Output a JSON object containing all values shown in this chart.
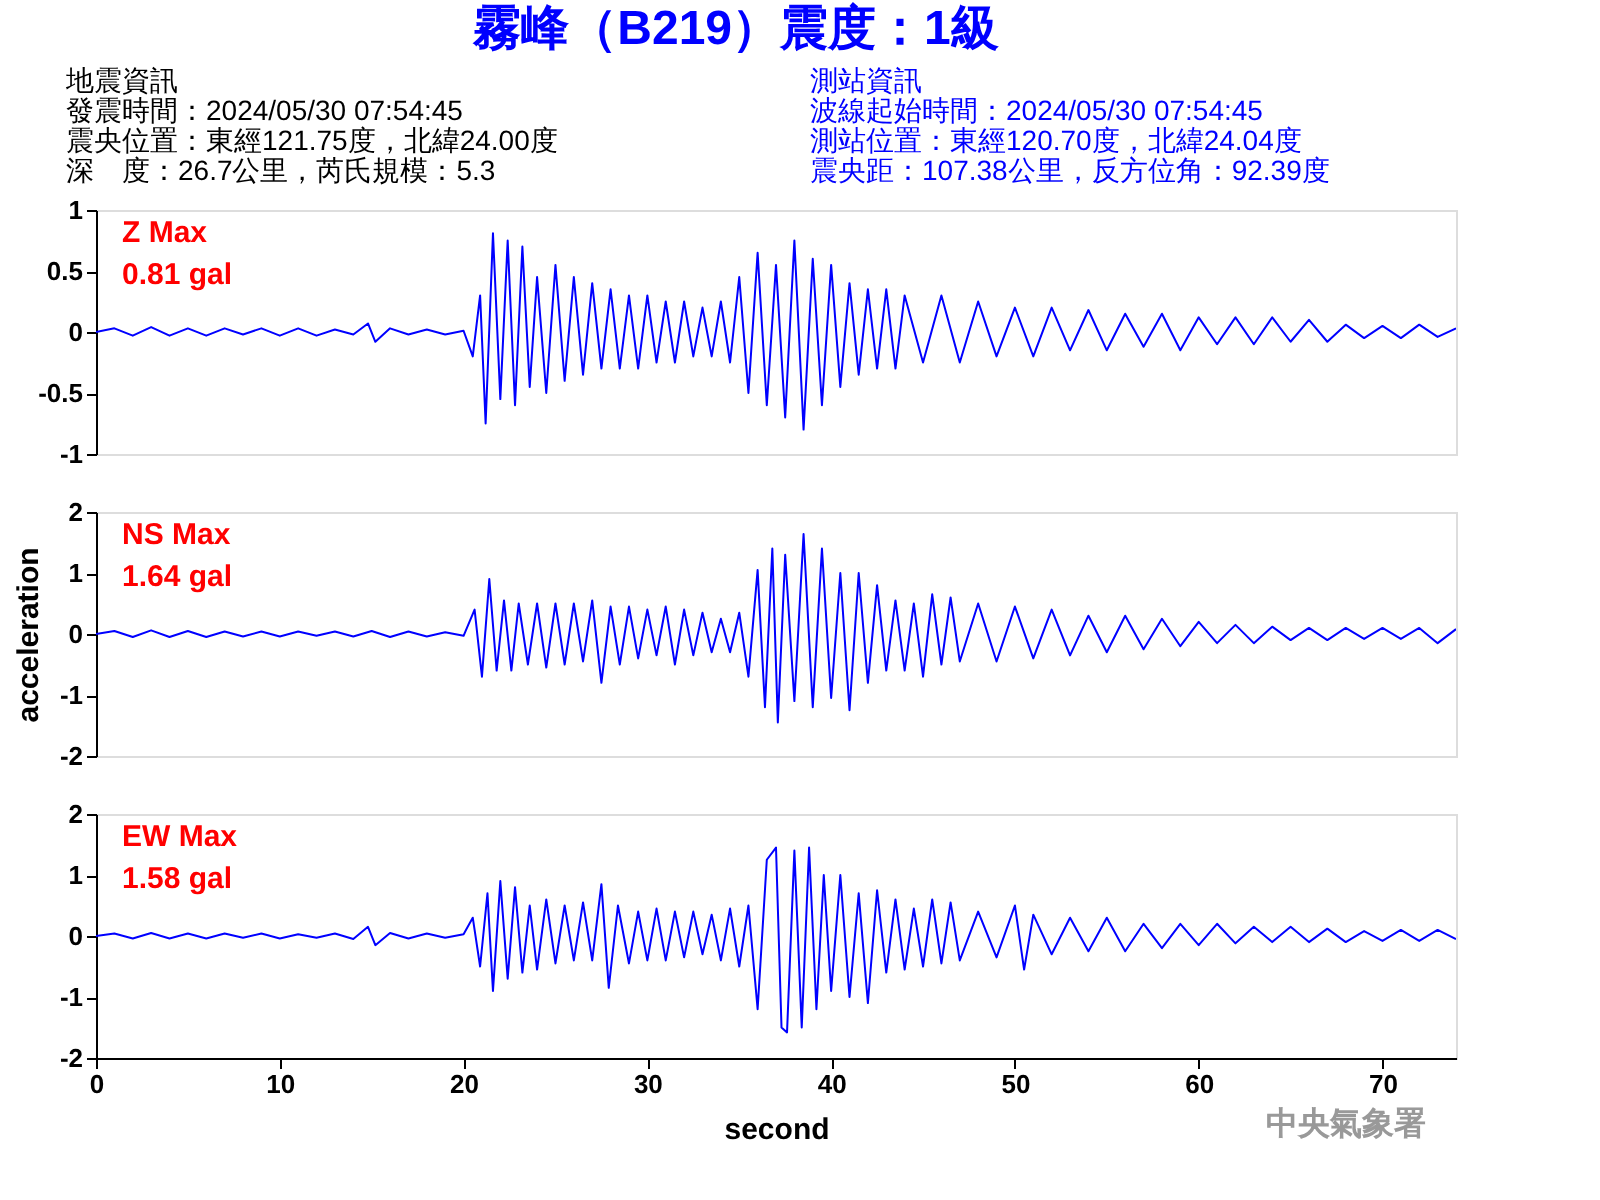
{
  "chart_data": [
    {
      "type": "line",
      "title": "霧峰（B219）震度：1級",
      "annotations": [
        "Z Max",
        "0.81 gal",
        "地震資訊",
        "發震時間：2024/05/30 07:54:45",
        "震央位置：東經121.75度，北緯24.00度",
        "深　度：26.7公里，芮氏規模：5.3",
        "測站資訊",
        "波線起始時間：2024/05/30 07:54:45",
        "測站位置：東經120.70度，北緯24.04度",
        "震央距：107.38公里，反方位角：92.39度"
      ],
      "xlim": [
        0,
        74
      ],
      "ylim": [
        -1,
        1
      ],
      "yticks": [
        -1,
        -0.5,
        0,
        0.5,
        1
      ],
      "tick_labels": "y",
      "series": [
        {
          "color": "#0000ff",
          "x": [
            0,
            1,
            2,
            3,
            4,
            5,
            6,
            7,
            8,
            9,
            10,
            11,
            12,
            13,
            14,
            14.8,
            15.2,
            16,
            17,
            18,
            19,
            20,
            20.5,
            20.9,
            21.2,
            21.6,
            22,
            22.4,
            22.8,
            23.2,
            23.6,
            24,
            24.5,
            25,
            25.5,
            26,
            26.5,
            27,
            27.5,
            28,
            28.5,
            29,
            29.5,
            30,
            30.5,
            31,
            31.5,
            32,
            32.5,
            33,
            33.5,
            34,
            34.5,
            35,
            35.5,
            36,
            36.5,
            37,
            37.5,
            38,
            38.5,
            39,
            39.5,
            40,
            40.5,
            41,
            41.5,
            42,
            42.5,
            43,
            43.5,
            44,
            45,
            46,
            47,
            48,
            49,
            50,
            51,
            52,
            53,
            54,
            55,
            56,
            57,
            58,
            59,
            60,
            61,
            62,
            63,
            64,
            65,
            66,
            67,
            68,
            69,
            70,
            71,
            72,
            73,
            74
          ],
          "values": [
            0,
            0.03,
            -0.03,
            0.04,
            -0.03,
            0.03,
            -0.03,
            0.03,
            -0.02,
            0.03,
            -0.03,
            0.03,
            -0.03,
            0.02,
            -0.02,
            0.07,
            -0.08,
            0.03,
            -0.02,
            0.02,
            -0.02,
            0.01,
            -0.2,
            0.3,
            -0.75,
            0.81,
            -0.55,
            0.75,
            -0.6,
            0.7,
            -0.45,
            0.45,
            -0.5,
            0.55,
            -0.4,
            0.45,
            -0.35,
            0.4,
            -0.3,
            0.35,
            -0.3,
            0.3,
            -0.3,
            0.3,
            -0.25,
            0.25,
            -0.25,
            0.25,
            -0.2,
            0.2,
            -0.2,
            0.25,
            -0.25,
            0.45,
            -0.5,
            0.65,
            -0.6,
            0.55,
            -0.7,
            0.75,
            -0.8,
            0.6,
            -0.6,
            0.55,
            -0.45,
            0.4,
            -0.35,
            0.35,
            -0.3,
            0.35,
            -0.3,
            0.3,
            -0.25,
            0.3,
            -0.25,
            0.25,
            -0.2,
            0.2,
            -0.2,
            0.2,
            -0.15,
            0.18,
            -0.15,
            0.15,
            -0.12,
            0.15,
            -0.15,
            0.12,
            -0.1,
            0.12,
            -0.1,
            0.12,
            -0.08,
            0.1,
            -0.08,
            0.06,
            -0.05,
            0.05,
            -0.05,
            0.06,
            -0.04,
            0.03
          ]
        }
      ]
    },
    {
      "type": "line",
      "ylabel": "acceleration",
      "annotations": [
        "NS Max",
        "1.64 gal"
      ],
      "xlim": [
        0,
        74
      ],
      "ylim": [
        -2,
        2
      ],
      "yticks": [
        -2,
        -1,
        0,
        1,
        2
      ],
      "tick_labels": "y",
      "series": [
        {
          "color": "#0000ff",
          "x": [
            0,
            1,
            2,
            3,
            4,
            5,
            6,
            7,
            8,
            9,
            10,
            11,
            12,
            13,
            14,
            15,
            16,
            17,
            18,
            19,
            20,
            20.6,
            21,
            21.4,
            21.8,
            22.2,
            22.6,
            23,
            23.5,
            24,
            24.5,
            25,
            25.5,
            26,
            26.5,
            27,
            27.5,
            28,
            28.5,
            29,
            29.5,
            30,
            30.5,
            31,
            31.5,
            32,
            32.5,
            33,
            33.5,
            34,
            34.5,
            35,
            35.5,
            36,
            36.4,
            36.8,
            37.1,
            37.5,
            38,
            38.5,
            39,
            39.5,
            40,
            40.5,
            41,
            41.5,
            42,
            42.5,
            43,
            43.5,
            44,
            44.5,
            45,
            45.5,
            46,
            46.5,
            47,
            48,
            49,
            50,
            51,
            52,
            53,
            54,
            55,
            56,
            57,
            58,
            59,
            60,
            61,
            62,
            63,
            64,
            65,
            66,
            67,
            68,
            69,
            70,
            71,
            72,
            73,
            74
          ],
          "values": [
            0,
            0.05,
            -0.05,
            0.06,
            -0.05,
            0.05,
            -0.05,
            0.04,
            -0.04,
            0.04,
            -0.04,
            0.04,
            -0.03,
            0.04,
            -0.04,
            0.05,
            -0.05,
            0.04,
            -0.04,
            0.03,
            -0.03,
            0.4,
            -0.7,
            0.9,
            -0.6,
            0.55,
            -0.6,
            0.5,
            -0.5,
            0.5,
            -0.55,
            0.5,
            -0.5,
            0.5,
            -0.45,
            0.55,
            -0.8,
            0.45,
            -0.5,
            0.45,
            -0.4,
            0.4,
            -0.35,
            0.45,
            -0.5,
            0.4,
            -0.35,
            0.35,
            -0.3,
            0.25,
            -0.3,
            0.35,
            -0.7,
            1.05,
            -1.2,
            1.4,
            -1.45,
            1.3,
            -1.1,
            1.64,
            -1.2,
            1.4,
            -1.05,
            1.0,
            -1.25,
            1.0,
            -0.8,
            0.8,
            -0.6,
            0.55,
            -0.6,
            0.5,
            -0.7,
            0.65,
            -0.5,
            0.6,
            -0.45,
            0.5,
            -0.45,
            0.45,
            -0.4,
            0.4,
            -0.35,
            0.3,
            -0.3,
            0.3,
            -0.25,
            0.25,
            -0.2,
            0.2,
            -0.15,
            0.15,
            -0.15,
            0.12,
            -0.1,
            0.1,
            -0.1,
            0.1,
            -0.08,
            0.1,
            -0.08,
            0.1,
            -0.15,
            0.08
          ]
        }
      ]
    },
    {
      "type": "line",
      "xlabel": "second",
      "annotations": [
        "EW Max",
        "1.58 gal",
        "中央氣象署"
      ],
      "xlim": [
        0,
        74
      ],
      "xticks": [
        0,
        10,
        20,
        30,
        40,
        50,
        60,
        70
      ],
      "ylim": [
        -2,
        2
      ],
      "yticks": [
        -2,
        -1,
        0,
        1,
        2
      ],
      "series": [
        {
          "color": "#0000ff",
          "x": [
            0,
            1,
            2,
            3,
            4,
            5,
            6,
            7,
            8,
            9,
            10,
            11,
            12,
            13,
            14,
            14.8,
            15.2,
            16,
            17,
            18,
            19,
            20,
            20.5,
            20.9,
            21.3,
            21.6,
            22,
            22.4,
            22.8,
            23.2,
            23.6,
            24,
            24.5,
            25,
            25.5,
            26,
            26.5,
            27,
            27.5,
            27.9,
            28.4,
            29,
            29.5,
            30,
            30.5,
            31,
            31.5,
            32,
            32.5,
            33,
            33.5,
            34,
            34.5,
            35,
            35.5,
            36,
            36.5,
            37,
            37.3,
            37.6,
            38,
            38.4,
            38.8,
            39.2,
            39.6,
            40,
            40.5,
            41,
            41.5,
            42,
            42.5,
            43,
            43.5,
            44,
            44.5,
            45,
            45.5,
            46,
            46.5,
            47,
            48,
            49,
            50,
            50.5,
            51,
            52,
            53,
            54,
            55,
            56,
            57,
            58,
            59,
            60,
            61,
            62,
            63,
            64,
            65,
            66,
            67,
            68,
            69,
            70,
            71,
            72,
            73,
            74
          ],
          "values": [
            0,
            0.04,
            -0.04,
            0.05,
            -0.04,
            0.04,
            -0.04,
            0.04,
            -0.03,
            0.04,
            -0.04,
            0.03,
            -0.03,
            0.04,
            -0.05,
            0.15,
            -0.15,
            0.05,
            -0.04,
            0.04,
            -0.03,
            0.03,
            0.3,
            -0.5,
            0.7,
            -0.9,
            0.9,
            -0.7,
            0.8,
            -0.6,
            0.5,
            -0.55,
            0.6,
            -0.45,
            0.5,
            -0.4,
            0.55,
            -0.4,
            0.85,
            -0.85,
            0.5,
            -0.45,
            0.4,
            -0.4,
            0.45,
            -0.4,
            0.4,
            -0.35,
            0.4,
            -0.3,
            0.35,
            -0.4,
            0.45,
            -0.5,
            0.5,
            -1.2,
            1.25,
            1.45,
            -1.5,
            -1.58,
            1.4,
            -1.5,
            1.45,
            -1.2,
            1.0,
            -0.9,
            1.0,
            -1.0,
            0.7,
            -1.1,
            0.75,
            -0.6,
            0.6,
            -0.55,
            0.45,
            -0.5,
            0.6,
            -0.45,
            0.55,
            -0.4,
            0.4,
            -0.35,
            0.5,
            -0.55,
            0.35,
            -0.3,
            0.3,
            -0.25,
            0.3,
            -0.25,
            0.2,
            -0.2,
            0.2,
            -0.15,
            0.2,
            -0.12,
            0.15,
            -0.1,
            0.15,
            -0.1,
            0.12,
            -0.1,
            0.08,
            -0.08,
            0.1,
            -0.08,
            0.1,
            -0.05
          ]
        }
      ]
    }
  ]
}
